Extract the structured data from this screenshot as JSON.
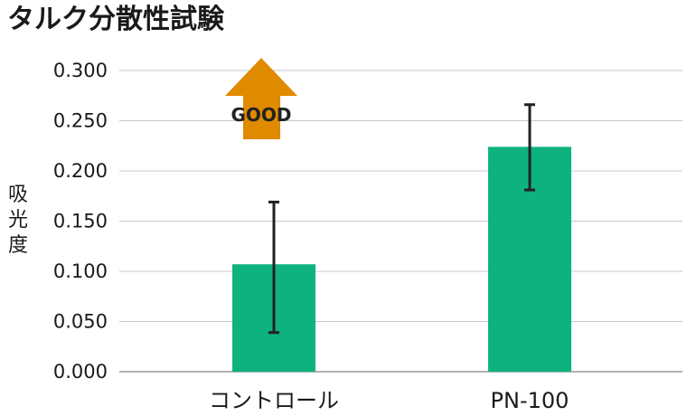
{
  "chart_data": {
    "type": "bar",
    "title": "タルク分散性試験",
    "xlabel": "",
    "ylabel": "吸光度",
    "ylim": [
      0,
      0.3
    ],
    "yticks": [
      "0.300",
      "0.250",
      "0.200",
      "0.150",
      "0.100",
      "0.050",
      "0.000"
    ],
    "categories": [
      "コントロール",
      "PN-100"
    ],
    "values": [
      0.107,
      0.224
    ],
    "error_low": [
      0.039,
      0.181
    ],
    "error_high": [
      0.169,
      0.266
    ],
    "grid": true,
    "annotation": {
      "text": "GOOD",
      "shape": "up-arrow"
    },
    "colors": {
      "bar": "#0db27f",
      "arrow": "#e08a00",
      "errorbar": "#222222",
      "grid": "#c8c8c8",
      "axis": "#999999"
    }
  }
}
